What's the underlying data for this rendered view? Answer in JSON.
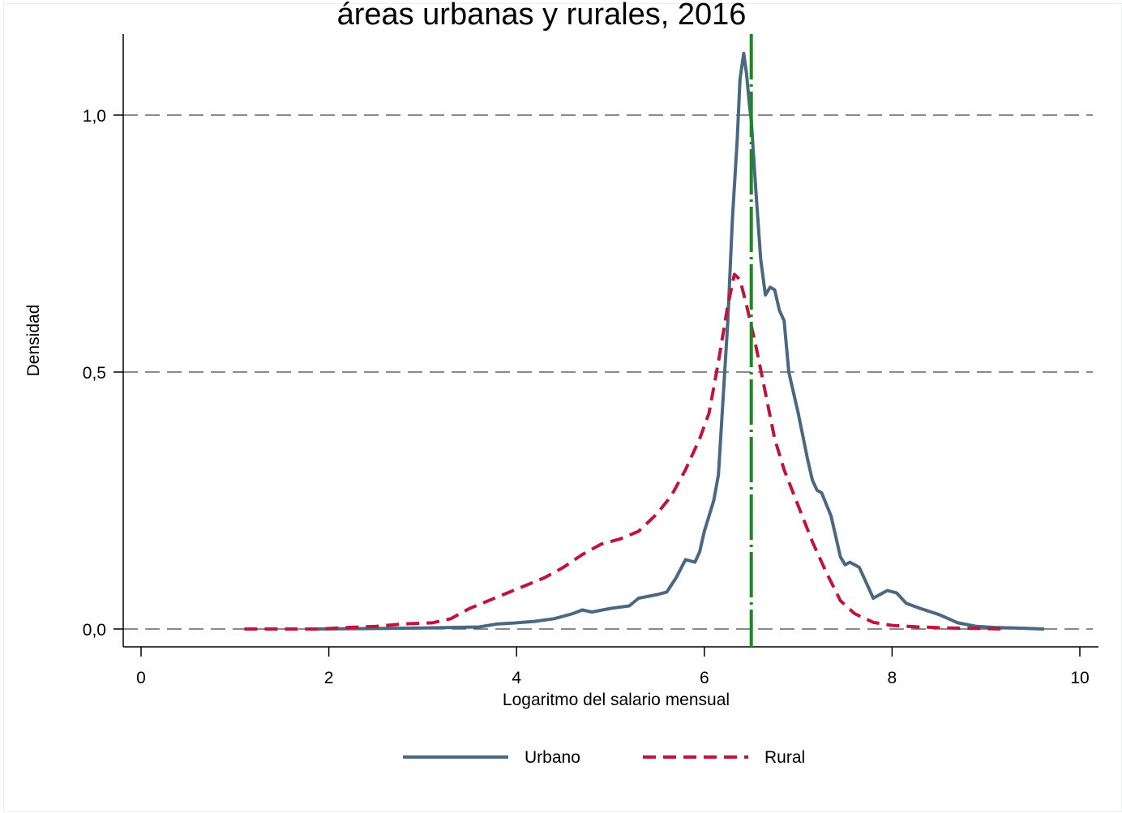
{
  "chart_data": {
    "type": "line",
    "title": "áreas urbanas y rurales, 2016",
    "xlabel": "Logaritmo del salario mensual",
    "ylabel": "Densidad",
    "xlim": [
      -0.2,
      10.2
    ],
    "ylim": [
      -0.035,
      1.155
    ],
    "x_ticks": [
      0,
      2,
      4,
      6,
      8,
      10
    ],
    "x_tick_labels": [
      "0",
      "2",
      "4",
      "6",
      "8",
      "10"
    ],
    "y_ticks": [
      0,
      0.5,
      1.0
    ],
    "y_tick_labels": [
      "0,0",
      "0,5",
      "1,0"
    ],
    "grid": "horizontal dashed",
    "legend_position": "bottom",
    "reference_line": {
      "x": 6.5,
      "color": "#1a8a1a",
      "style": "dash-dot"
    },
    "series": [
      {
        "name": "Urbano",
        "color": "#4a6880",
        "style": "solid",
        "points": [
          [
            1.8,
            0.0
          ],
          [
            2.5,
            0.001
          ],
          [
            3.0,
            0.002
          ],
          [
            3.6,
            0.004
          ],
          [
            3.8,
            0.01
          ],
          [
            4.0,
            0.012
          ],
          [
            4.2,
            0.015
          ],
          [
            4.4,
            0.02
          ],
          [
            4.6,
            0.03
          ],
          [
            4.7,
            0.037
          ],
          [
            4.8,
            0.033
          ],
          [
            5.0,
            0.04
          ],
          [
            5.2,
            0.045
          ],
          [
            5.3,
            0.06
          ],
          [
            5.5,
            0.067
          ],
          [
            5.6,
            0.072
          ],
          [
            5.7,
            0.1
          ],
          [
            5.8,
            0.135
          ],
          [
            5.9,
            0.13
          ],
          [
            5.95,
            0.15
          ],
          [
            6.0,
            0.19
          ],
          [
            6.1,
            0.25
          ],
          [
            6.15,
            0.3
          ],
          [
            6.2,
            0.45
          ],
          [
            6.25,
            0.6
          ],
          [
            6.3,
            0.8
          ],
          [
            6.35,
            0.95
          ],
          [
            6.38,
            1.07
          ],
          [
            6.42,
            1.12
          ],
          [
            6.45,
            1.08
          ],
          [
            6.48,
            1.02
          ],
          [
            6.5,
            0.99
          ],
          [
            6.55,
            0.85
          ],
          [
            6.6,
            0.72
          ],
          [
            6.65,
            0.65
          ],
          [
            6.7,
            0.665
          ],
          [
            6.75,
            0.66
          ],
          [
            6.8,
            0.62
          ],
          [
            6.85,
            0.6
          ],
          [
            6.9,
            0.5
          ],
          [
            6.95,
            0.46
          ],
          [
            7.0,
            0.42
          ],
          [
            7.1,
            0.33
          ],
          [
            7.15,
            0.29
          ],
          [
            7.2,
            0.27
          ],
          [
            7.25,
            0.265
          ],
          [
            7.35,
            0.22
          ],
          [
            7.45,
            0.14
          ],
          [
            7.5,
            0.125
          ],
          [
            7.55,
            0.13
          ],
          [
            7.65,
            0.12
          ],
          [
            7.7,
            0.1
          ],
          [
            7.8,
            0.06
          ],
          [
            7.85,
            0.065
          ],
          [
            7.95,
            0.075
          ],
          [
            8.05,
            0.07
          ],
          [
            8.15,
            0.05
          ],
          [
            8.3,
            0.04
          ],
          [
            8.5,
            0.028
          ],
          [
            8.7,
            0.012
          ],
          [
            8.9,
            0.005
          ],
          [
            9.1,
            0.003
          ],
          [
            9.3,
            0.002
          ],
          [
            9.62,
            0.0
          ]
        ]
      },
      {
        "name": "Rural",
        "color": "#c0143c",
        "style": "dashed",
        "points": [
          [
            1.1,
            0.0
          ],
          [
            1.9,
            0.0
          ],
          [
            2.2,
            0.003
          ],
          [
            2.5,
            0.005
          ],
          [
            2.8,
            0.01
          ],
          [
            3.1,
            0.012
          ],
          [
            3.3,
            0.02
          ],
          [
            3.5,
            0.04
          ],
          [
            3.7,
            0.055
          ],
          [
            3.9,
            0.07
          ],
          [
            4.1,
            0.085
          ],
          [
            4.3,
            0.1
          ],
          [
            4.5,
            0.12
          ],
          [
            4.7,
            0.145
          ],
          [
            4.9,
            0.165
          ],
          [
            5.1,
            0.175
          ],
          [
            5.3,
            0.19
          ],
          [
            5.5,
            0.225
          ],
          [
            5.65,
            0.26
          ],
          [
            5.8,
            0.31
          ],
          [
            5.95,
            0.37
          ],
          [
            6.05,
            0.42
          ],
          [
            6.15,
            0.52
          ],
          [
            6.25,
            0.63
          ],
          [
            6.32,
            0.69
          ],
          [
            6.38,
            0.68
          ],
          [
            6.45,
            0.63
          ],
          [
            6.55,
            0.55
          ],
          [
            6.65,
            0.46
          ],
          [
            6.75,
            0.37
          ],
          [
            6.85,
            0.31
          ],
          [
            7.0,
            0.24
          ],
          [
            7.15,
            0.17
          ],
          [
            7.3,
            0.11
          ],
          [
            7.45,
            0.055
          ],
          [
            7.6,
            0.03
          ],
          [
            7.8,
            0.013
          ],
          [
            8.0,
            0.007
          ],
          [
            8.3,
            0.004
          ],
          [
            8.6,
            0.002
          ],
          [
            9.2,
            0.0
          ]
        ]
      }
    ]
  },
  "legend": {
    "items": [
      {
        "label": "Urbano",
        "color": "#4a6880",
        "style": "solid"
      },
      {
        "label": "Rural",
        "color": "#c0143c",
        "style": "dashed"
      }
    ]
  }
}
